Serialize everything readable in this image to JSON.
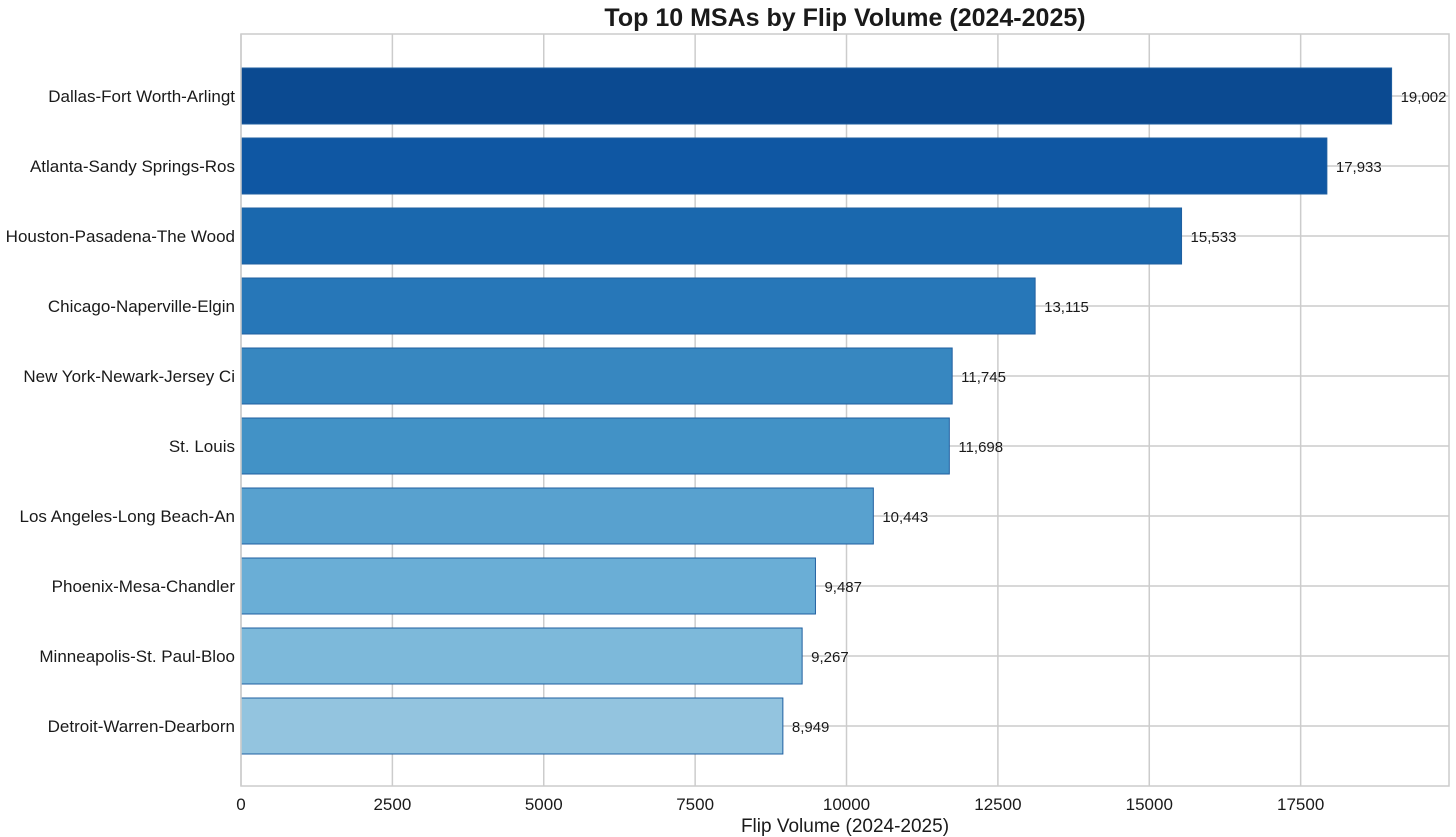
{
  "chart_data": {
    "type": "bar",
    "orientation": "horizontal",
    "title": "Top 10 MSAs by Flip Volume (2024-2025)",
    "xlabel": "Flip Volume (2024-2025)",
    "ylabel": "",
    "xlim": [
      0,
      19950
    ],
    "xticks": [
      0,
      2500,
      5000,
      7500,
      10000,
      12500,
      15000,
      17500
    ],
    "xtick_labels": [
      "0",
      "2500",
      "5000",
      "7500",
      "10000",
      "12500",
      "15000",
      "17500"
    ],
    "grid": true,
    "categories": [
      "Dallas-Fort Worth-Arlingt",
      "Atlanta-Sandy Springs-Ros",
      "Houston-Pasadena-The Wood",
      "Chicago-Naperville-Elgin",
      "New York-Newark-Jersey Ci",
      "St. Louis",
      "Los Angeles-Long Beach-An",
      "Phoenix-Mesa-Chandler",
      "Minneapolis-St. Paul-Bloo",
      "Detroit-Warren-Dearborn"
    ],
    "values": [
      19002,
      17933,
      15533,
      13115,
      11745,
      11698,
      10443,
      9487,
      9267,
      8949
    ],
    "value_labels": [
      "19,002",
      "17,933",
      "15,533",
      "13,115",
      "11,745",
      "11,698",
      "10,443",
      "9,487",
      "9,267",
      "8,949"
    ],
    "colors": [
      "#0b4a91",
      "#0f57a3",
      "#1a68ae",
      "#2777b8",
      "#3787c0",
      "#4292c6",
      "#58a1cf",
      "#6aaed6",
      "#7db9da",
      "#93c4df"
    ],
    "bar_edge_color": "#1f5fa0",
    "grid_color": "#cccccc",
    "spine_color": "#cccccc"
  }
}
